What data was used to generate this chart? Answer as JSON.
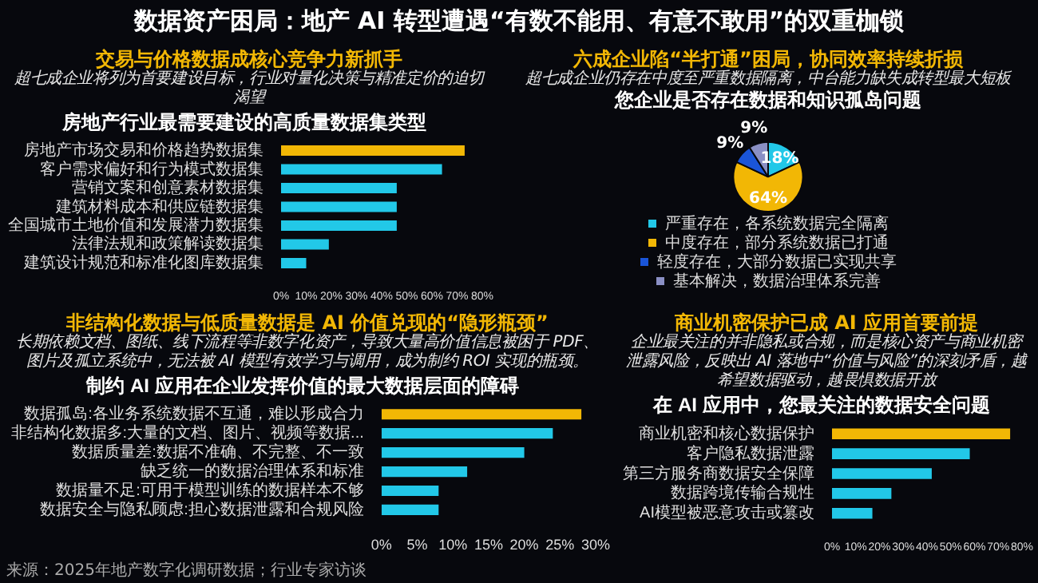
{
  "chart_data": [
    {
      "type": "bar",
      "orientation": "horizontal",
      "title": "房地产行业最需要建设的高质量数据集类型",
      "annotations": [
        "数据资产困局：地产 AI 转型遭遇“有数不能用、有意不敢用”的双重枷锁",
        "交易与价格数据成核心竞争力新抓手",
        "超七成企业将列为首要建设目标，行业对量化决策与精准定价的迫切渴望"
      ],
      "categories": [
        "房地产市场交易和价格趋势数据集",
        "客户需求偏好和行为模式数据集",
        "营销文案和创意素材数据集",
        "建筑材料成本和供应链数据集",
        "全国城市土地价值和发展潜力数据集",
        "法律法规和政策解读数据集",
        "建筑设计规范和标准化图库数据集"
      ],
      "values": [
        73,
        64,
        46,
        46,
        46,
        19,
        10
      ],
      "colors": [
        "#f2b705",
        "#22c8e8",
        "#22c8e8",
        "#22c8e8",
        "#22c8e8",
        "#22c8e8",
        "#22c8e8"
      ],
      "xlim": [
        0,
        80
      ],
      "xticks": [
        {
          "value": 0,
          "label": "0%"
        },
        {
          "value": 10,
          "label": "10%"
        },
        {
          "value": 20,
          "label": "20%"
        },
        {
          "value": 30,
          "label": "30%"
        },
        {
          "value": 40,
          "label": "40%"
        },
        {
          "value": 50,
          "label": "50%"
        },
        {
          "value": 60,
          "label": "60%"
        },
        {
          "value": 70,
          "label": "70%"
        },
        {
          "value": 80,
          "label": "80%"
        }
      ]
    },
    {
      "type": "pie",
      "title": "您企业是否存在数据和知识孤岛问题",
      "annotations": [
        "六成企业陷“半打通”困局，协同效率持续折损",
        "超七成企业仍存在中度至严重数据隔离，中台能力缺失成转型最大短板"
      ],
      "categories": [
        "严重存在，各系统数据完全隔离",
        "中度存在，部分系统数据已打通",
        "轻度存在，大部分数据已实现共享",
        "基本解决，数据治理体系完善"
      ],
      "values": [
        18,
        64,
        9,
        9
      ],
      "value_labels": [
        "18%",
        "64%",
        "9%",
        "9%"
      ],
      "colors": [
        "#22c8e8",
        "#f2b705",
        "#1a55d8",
        "#8a8fc4"
      ],
      "legend": "bottom"
    },
    {
      "type": "bar",
      "orientation": "horizontal",
      "title": "制约 AI 应用在企业发挥价值的最大数据层面的障碍",
      "annotations": [
        "非结构化数据与低质量数据是 AI 价值兑现的“隐形瓶颈”",
        "长期依赖文档、图纸、线下流程等非数字化资产，导致大量高价值信息被困于 PDF、图片及孤立系统中，无法被 AI 模型有效学习与调用，成为制约 ROI 实现的瓶颈。",
        "来源：2025年地产数字化调研数据；行业专家访谈"
      ],
      "categories": [
        "数据孤岛:各业务系统数据不互通，难以形成合力",
        "非结构化数据多:大量的文档、图片、视频等数据...",
        "数据质量差:数据不准确、不完整、不一致",
        "缺乏统一的数据治理体系和标准",
        "数据量不足:可用于模型训练的数据样本不够",
        "数据安全与隐私顾虑:担心数据泄露和合规风险"
      ],
      "values": [
        28,
        24,
        20,
        12,
        8,
        8
      ],
      "colors": [
        "#f2b705",
        "#22c8e8",
        "#22c8e8",
        "#22c8e8",
        "#22c8e8",
        "#22c8e8"
      ],
      "xlim": [
        0,
        30
      ],
      "xticks": [
        {
          "value": 0,
          "label": "0%"
        },
        {
          "value": 5,
          "label": "5%"
        },
        {
          "value": 10,
          "label": "10%"
        },
        {
          "value": 15,
          "label": "15%"
        },
        {
          "value": 20,
          "label": "20%"
        },
        {
          "value": 25,
          "label": "25%"
        },
        {
          "value": 30,
          "label": "30%"
        }
      ]
    },
    {
      "type": "bar",
      "orientation": "horizontal",
      "title": "在 AI 应用中，您最关注的数据安全问题",
      "annotations": [
        "商业机密保护已成 AI 应用首要前提",
        "企业最关注的并非隐私或合规，而是核心资产与商业机密泄露风险，反映出 AI 落地中“价值与风险”的深刻矛盾，越希望数据驱动，越畏惧数据开放"
      ],
      "categories": [
        "商业机密和核心数据保护",
        "客户隐私数据泄露",
        "第三方服务商数据安全保障",
        "数据跨境传输合规性",
        "AI模型被恶意攻击或篡改"
      ],
      "values": [
        75,
        58,
        42,
        25,
        17
      ],
      "colors": [
        "#f2b705",
        "#22c8e8",
        "#22c8e8",
        "#22c8e8",
        "#22c8e8"
      ],
      "xlim": [
        0,
        80
      ],
      "xticks": [
        {
          "value": 0,
          "label": "0%"
        },
        {
          "value": 10,
          "label": "10%"
        },
        {
          "value": 20,
          "label": "20%"
        },
        {
          "value": 30,
          "label": "30%"
        },
        {
          "value": 40,
          "label": "40%"
        },
        {
          "value": 50,
          "label": "50%"
        },
        {
          "value": 60,
          "label": "60%"
        },
        {
          "value": 70,
          "label": "70%"
        },
        {
          "value": 80,
          "label": "80%"
        }
      ]
    }
  ]
}
